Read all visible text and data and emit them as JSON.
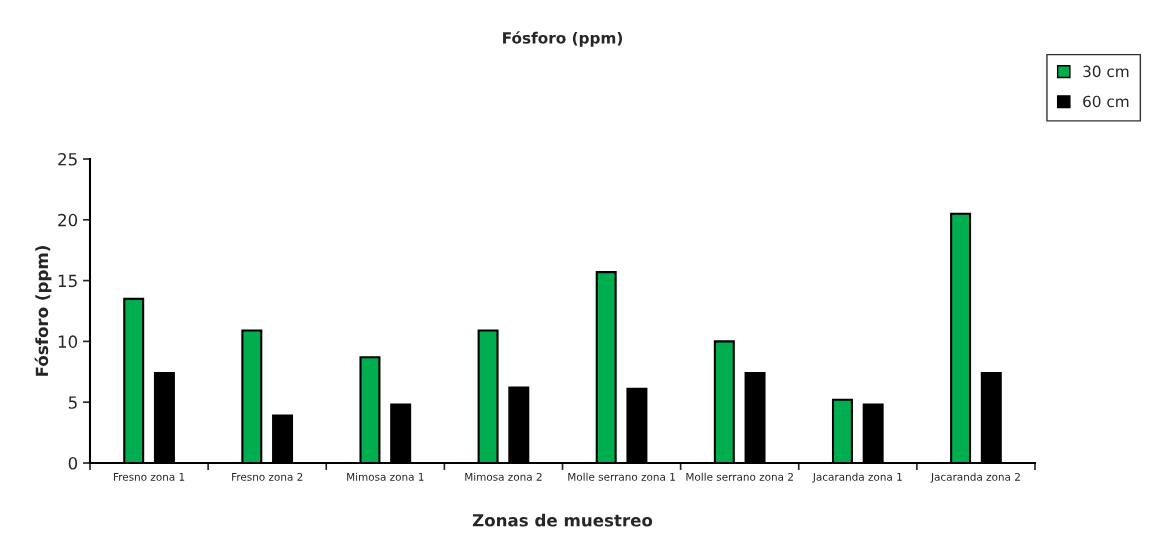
{
  "chart_data": {
    "type": "bar",
    "title": "Fósforo (ppm)",
    "xlabel": "Zonas de muestreo",
    "ylabel": "Fósforo (ppm)",
    "categories": [
      "Fresno zona 1",
      "Fresno zona 2",
      "Mimosa zona 1",
      "Mimosa zona 2",
      "Molle serrano zona 1",
      "Molle serrano zona 2",
      "Jacaranda zona 1",
      "Jacaranda zona 2"
    ],
    "series": [
      {
        "name": "30 cm",
        "color": "#00ad4f",
        "values": [
          13.5,
          10.9,
          8.7,
          10.9,
          15.7,
          10.0,
          5.2,
          20.5
        ]
      },
      {
        "name": "60 cm",
        "color": "#000000",
        "values": [
          7.4,
          3.9,
          4.8,
          6.2,
          6.1,
          7.4,
          4.8,
          7.4
        ]
      }
    ],
    "ylim": [
      0,
      25
    ],
    "yticks": [
      0,
      5,
      10,
      15,
      20,
      25
    ],
    "grid": false,
    "legend": "top right"
  }
}
